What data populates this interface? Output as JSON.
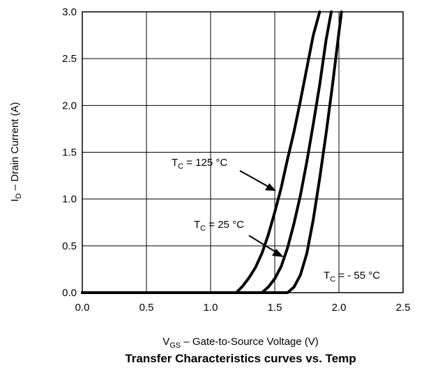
{
  "chart_data": {
    "type": "line",
    "title": "Transfer Characteristics curves vs. Temp",
    "xlabel": {
      "main": "V",
      "sub": "GS",
      "rest": "  –  Gate-to-Source Voltage (V)"
    },
    "ylabel": {
      "main": "I",
      "sub": "D",
      "rest": "  –  Drain Current (A)"
    },
    "xlim": [
      0,
      2.5
    ],
    "ylim": [
      0,
      3.0
    ],
    "xticks": [
      "0.0",
      "0.5",
      "1.0",
      "1.5",
      "2.0",
      "2.5"
    ],
    "yticks": [
      "0.0",
      "0.5",
      "1.0",
      "1.5",
      "2.0",
      "2.5",
      "3.0"
    ],
    "grid": true,
    "series": [
      {
        "name": "TC = 125 °C",
        "x": [
          0.0,
          1.2,
          1.25,
          1.3,
          1.35,
          1.4,
          1.45,
          1.5,
          1.55,
          1.6,
          1.65,
          1.7,
          1.75,
          1.8,
          1.85
        ],
        "y": [
          0.0,
          0.0,
          0.07,
          0.16,
          0.27,
          0.42,
          0.62,
          0.86,
          1.12,
          1.43,
          1.72,
          2.05,
          2.4,
          2.75,
          3.0
        ]
      },
      {
        "name": "TC = 25 °C",
        "x": [
          0.0,
          1.4,
          1.45,
          1.5,
          1.55,
          1.6,
          1.65,
          1.7,
          1.75,
          1.8,
          1.85,
          1.9,
          1.94
        ],
        "y": [
          0.0,
          0.0,
          0.06,
          0.15,
          0.28,
          0.48,
          0.74,
          1.04,
          1.4,
          1.8,
          2.22,
          2.7,
          3.0
        ]
      },
      {
        "name": "TC = - 55 °C",
        "x": [
          0.0,
          1.6,
          1.65,
          1.7,
          1.75,
          1.8,
          1.85,
          1.9,
          1.95,
          2.0,
          2.02
        ],
        "y": [
          0.0,
          0.0,
          0.06,
          0.19,
          0.42,
          0.78,
          1.22,
          1.7,
          2.22,
          2.78,
          3.0
        ]
      }
    ],
    "annotations": [
      {
        "main": "T",
        "sub": "C",
        "rest": " = 125 °C",
        "series": 0
      },
      {
        "main": "T",
        "sub": "C",
        "rest": " = 25 °C",
        "series": 1
      },
      {
        "main": "T",
        "sub": "C",
        "rest": " = - 55 °C",
        "series": 2
      }
    ]
  }
}
